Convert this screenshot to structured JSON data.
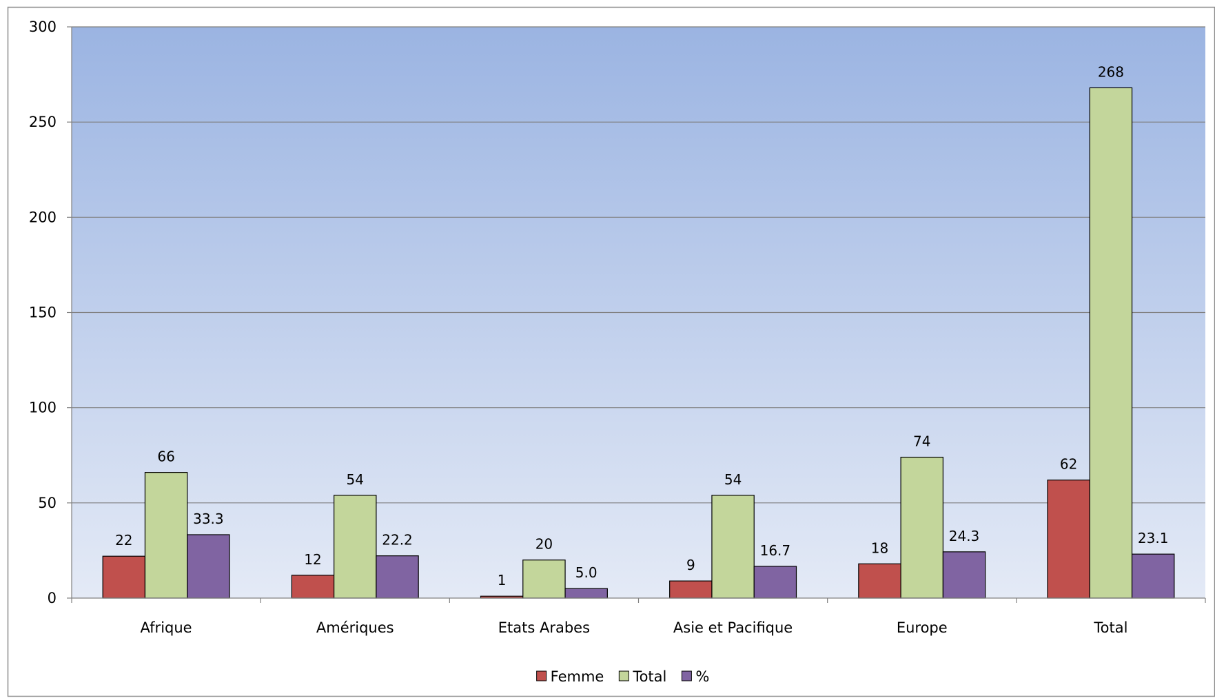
{
  "chart_data": {
    "type": "bar",
    "categories": [
      "Afrique",
      "Amériques",
      "Etats Arabes",
      "Asie et Pacifique",
      "Europe",
      "Total"
    ],
    "series": [
      {
        "name": "Femme",
        "values": [
          22,
          12,
          1,
          9,
          18,
          62
        ],
        "labels": [
          "22",
          "12",
          "1",
          "9",
          "18",
          "62"
        ],
        "color": "#c0504d"
      },
      {
        "name": "Total",
        "values": [
          66,
          54,
          20,
          54,
          74,
          268
        ],
        "labels": [
          "66",
          "54",
          "20",
          "54",
          "74",
          "268"
        ],
        "color": "#c3d69b"
      },
      {
        "name": "%",
        "values": [
          33.3,
          22.2,
          5.0,
          16.7,
          24.3,
          23.1
        ],
        "labels": [
          "33.3",
          "22.2",
          "5.0",
          "16.7",
          "24.3",
          "23.1"
        ],
        "color": "#8064a2"
      }
    ],
    "ylim": [
      0,
      300
    ],
    "yticks": [
      0,
      50,
      100,
      150,
      200,
      250,
      300
    ],
    "grid": true,
    "legend_position": "bottom",
    "plot_background": {
      "top": "#9bb4e2",
      "bottom": "#e4eaf6"
    },
    "gridline_color": "#7f7f7f",
    "bar_outline": "#000000"
  }
}
